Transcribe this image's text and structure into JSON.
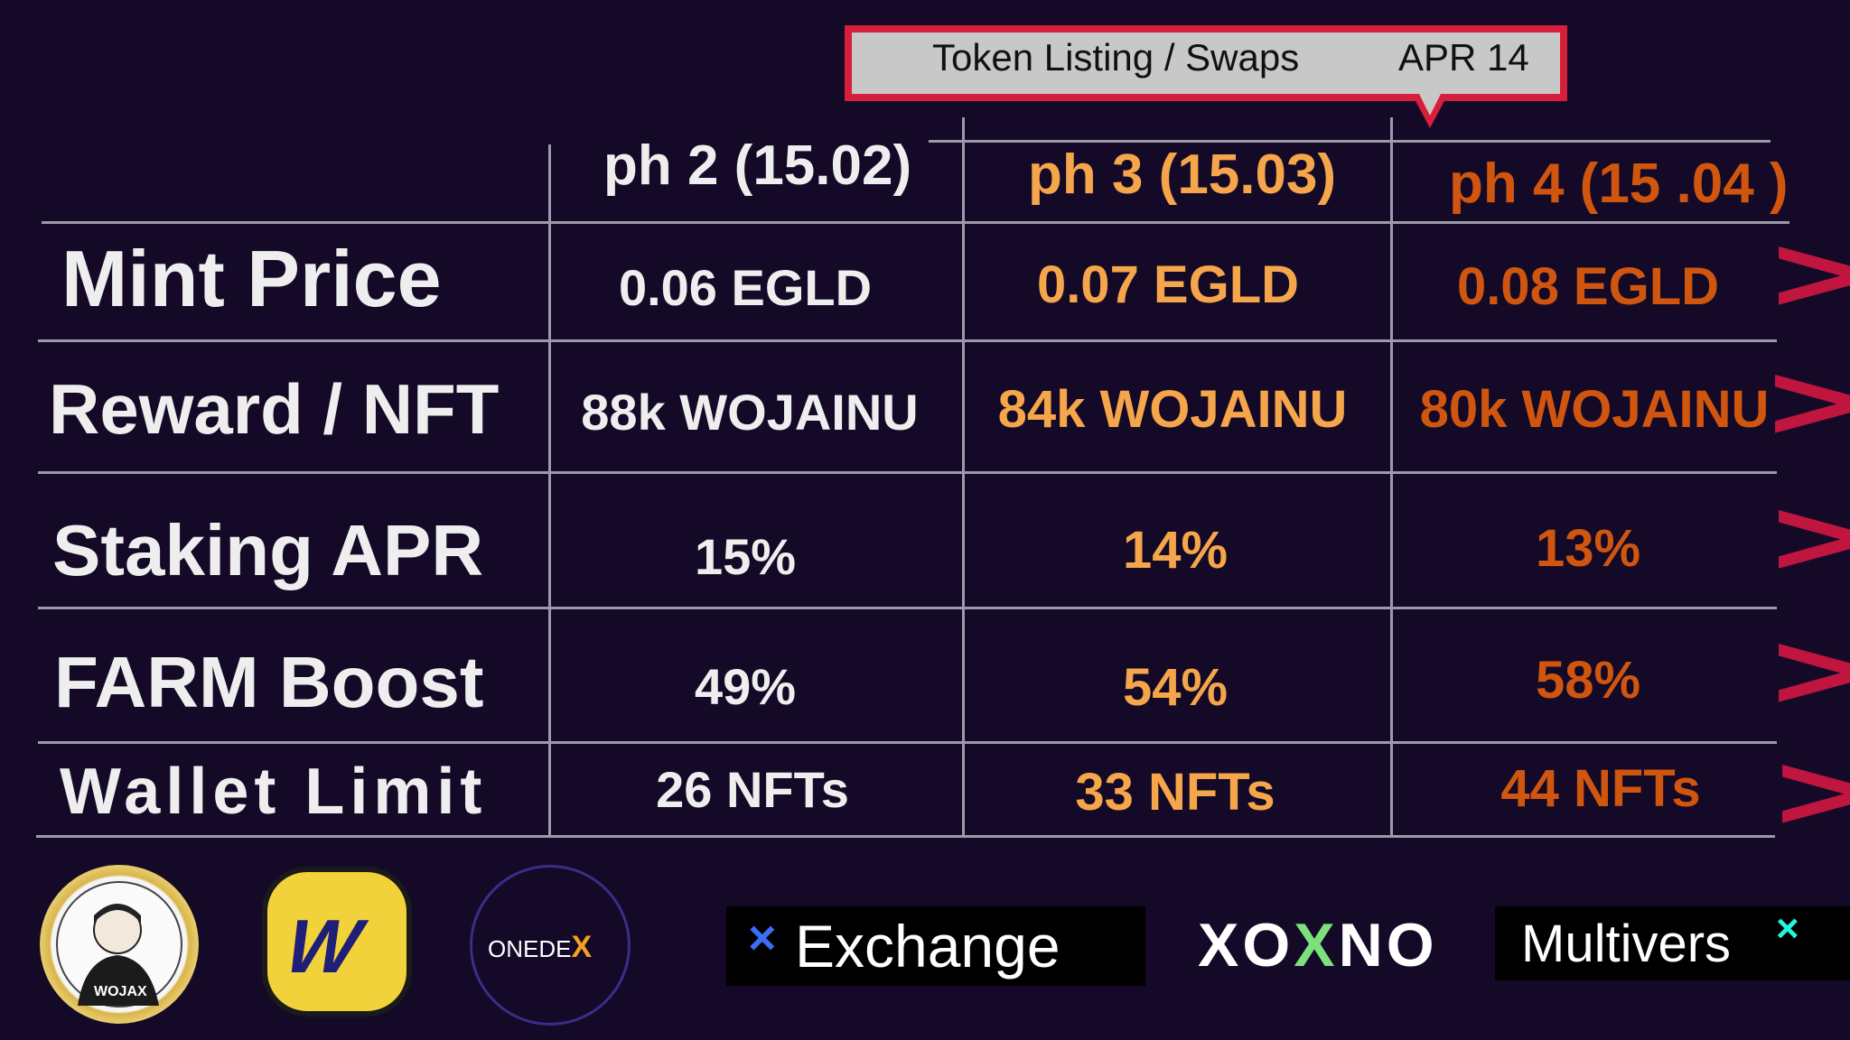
{
  "callout": {
    "label": "Token Listing / Swaps",
    "date": "APR 14"
  },
  "headers": {
    "ph2": "ph 2 (15.02)",
    "ph3": "ph 3 (15.03)",
    "ph4": "ph 4 (15 .04 )"
  },
  "rows": [
    {
      "label": "Mint Price",
      "ph2": "0.06 EGLD",
      "ph3": "0.07 EGLD",
      "ph4": "0.08 EGLD"
    },
    {
      "label": "Reward / NFT",
      "ph2": "88k WOJAINU",
      "ph3": "84k WOJAINU",
      "ph4": "80k WOJAINU"
    },
    {
      "label": "Staking APR",
      "ph2": "15%",
      "ph3": "14%",
      "ph4": "13%"
    },
    {
      "label": "FARM Boost",
      "ph2": "49%",
      "ph3": "54%",
      "ph4": "58%"
    },
    {
      "label": "Wallet Limit",
      "ph2": "26 NFTs",
      "ph3": "33 NFTs",
      "ph4": "44 NFTs"
    }
  ],
  "chevron": ">",
  "logos": {
    "wojax": "WOJAX",
    "wojax_accent": "X",
    "w_coin": "W",
    "onedex_one": "ONEDE",
    "onedex_x": "X",
    "xexchange_x": "×",
    "xexchange": "Exchange",
    "xoxno_1": "XO",
    "xoxno_x": "X",
    "xoxno_2": "NO",
    "multiversx": "Multivers",
    "multiversx_x": "×"
  },
  "colors": {
    "background": "#140a28",
    "ph2": "#eeeeee",
    "ph3": "#f5a54a",
    "ph4": "#d0560f",
    "accent_red": "#d61f3a",
    "teal": "#23f7dd"
  }
}
